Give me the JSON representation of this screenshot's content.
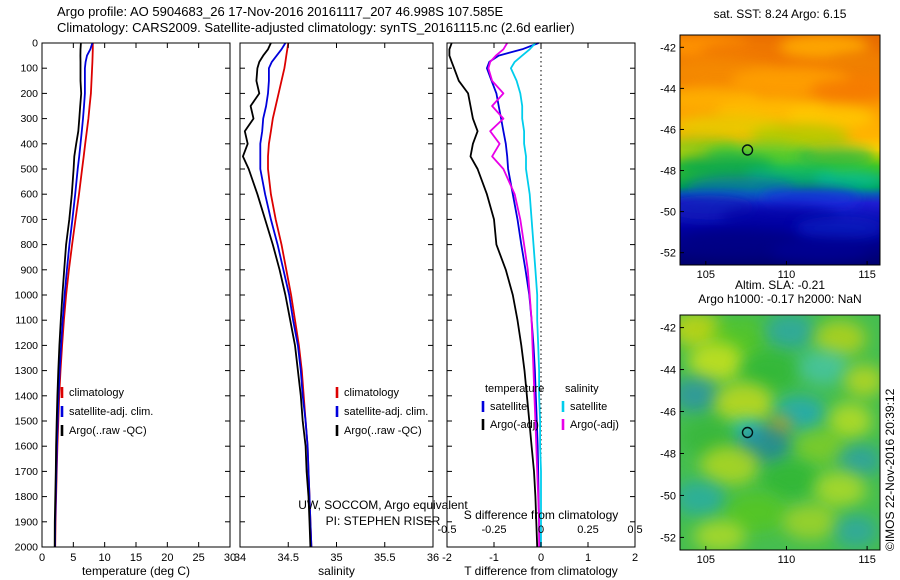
{
  "figure": {
    "title_line1": "Argo profile: AO 5904683_26 17-Nov-2016 20161117_207 46.998S 107.585E",
    "title_line2": "Climatology: CARS2009. Satellite-adjusted climatology: synTS_20161115.nc (2.6d earlier)",
    "annotation_line1": "UW, SOCCOM, Argo equivalent",
    "annotation_line2": "PI: STEPHEN RISER",
    "watermark": "©IMOS 22-Nov-2016 20:39:12"
  },
  "colors": {
    "climatology": "#dc0000",
    "satellite": "#0000dc",
    "argo": "#000000",
    "satellite_salinity": "#00cdec",
    "argo_salinity": "#e800e8",
    "axis": "#000000"
  },
  "chart_data": [
    {
      "id": "temperature-profile",
      "type": "line",
      "xlabel": "temperature (deg C)",
      "xlim": [
        0,
        30
      ],
      "xticks": [
        0,
        5,
        10,
        15,
        20,
        25,
        30
      ],
      "ylim": [
        0,
        2000
      ],
      "ytick_step": 100,
      "depth_m": [
        0,
        25,
        50,
        75,
        100,
        150,
        200,
        250,
        300,
        350,
        400,
        450,
        500,
        600,
        700,
        800,
        900,
        1000,
        1100,
        1200,
        1300,
        1400,
        1500,
        1600,
        1700,
        1800,
        1900,
        2000
      ],
      "legend": [
        {
          "label": "climatology",
          "color": "#dc0000"
        },
        {
          "label": "satellite-adj. clim.",
          "color": "#0000dc"
        },
        {
          "label": "Argo(..raw -QC)",
          "color": "#000000"
        }
      ],
      "series": [
        {
          "name": "climatology",
          "color": "#dc0000",
          "values": [
            8.1,
            8.1,
            8.08,
            8.05,
            8.0,
            7.9,
            7.8,
            7.6,
            7.4,
            7.15,
            6.9,
            6.65,
            6.4,
            5.9,
            5.35,
            4.8,
            4.3,
            3.85,
            3.5,
            3.2,
            2.95,
            2.75,
            2.6,
            2.45,
            2.35,
            2.25,
            2.15,
            2.1
          ]
        },
        {
          "name": "satellite-adj. clim.",
          "color": "#0000dc",
          "values": [
            8.05,
            7.7,
            7.18,
            6.95,
            6.85,
            6.85,
            6.85,
            6.7,
            6.55,
            6.35,
            6.15,
            5.93,
            5.7,
            5.3,
            4.85,
            4.38,
            3.97,
            3.6,
            3.3,
            3.04,
            2.82,
            2.64,
            2.51,
            2.38,
            2.29,
            2.2,
            2.11,
            2.07
          ]
        },
        {
          "name": "Argo(..raw -QC)",
          "color": "#000000",
          "values": [
            6.2,
            6.15,
            6.13,
            6.15,
            6.15,
            6.15,
            6.25,
            6.1,
            5.95,
            5.8,
            5.45,
            5.15,
            5.05,
            4.75,
            4.35,
            3.85,
            3.55,
            3.25,
            3.0,
            2.78,
            2.6,
            2.45,
            2.35,
            2.25,
            2.2,
            2.13,
            2.05,
            2.02
          ]
        }
      ]
    },
    {
      "id": "salinity-profile",
      "type": "line",
      "xlabel": "salinity",
      "xlim": [
        34,
        36
      ],
      "xticks": [
        34,
        34.5,
        35,
        35.5,
        36
      ],
      "ylim": [
        0,
        2000
      ],
      "ytick_step": 100,
      "depth_m": [
        0,
        25,
        50,
        75,
        100,
        150,
        200,
        250,
        300,
        350,
        400,
        450,
        500,
        600,
        700,
        800,
        900,
        1000,
        1100,
        1200,
        1300,
        1400,
        1500,
        1600,
        1700,
        1800,
        1900,
        2000
      ],
      "legend": [
        {
          "label": "climatology",
          "color": "#dc0000"
        },
        {
          "label": "satellite-adj. clim.",
          "color": "#0000dc"
        },
        {
          "label": "Argo(..raw -QC)",
          "color": "#000000"
        }
      ],
      "series": [
        {
          "name": "climatology",
          "color": "#dc0000",
          "values": [
            34.5,
            34.49,
            34.48,
            34.47,
            34.46,
            34.43,
            34.4,
            34.37,
            34.34,
            34.32,
            34.3,
            34.29,
            34.29,
            34.32,
            34.37,
            34.43,
            34.48,
            34.53,
            34.57,
            34.61,
            34.64,
            34.66,
            34.68,
            34.7,
            34.71,
            34.72,
            34.73,
            34.74
          ]
        },
        {
          "name": "satellite-adj. clim.",
          "color": "#0000dc",
          "values": [
            34.47,
            34.43,
            34.38,
            34.33,
            34.3,
            34.3,
            34.29,
            34.27,
            34.24,
            34.23,
            34.21,
            34.21,
            34.21,
            34.26,
            34.32,
            34.39,
            34.45,
            34.51,
            34.55,
            34.6,
            34.63,
            34.65,
            34.68,
            34.7,
            34.71,
            34.72,
            34.73,
            34.74
          ]
        },
        {
          "name": "Argo(..raw -QC)",
          "color": "#000000",
          "values": [
            34.32,
            34.29,
            34.24,
            34.2,
            34.18,
            34.17,
            34.2,
            34.11,
            34.14,
            34.05,
            34.08,
            34.03,
            34.09,
            34.18,
            34.26,
            34.34,
            34.41,
            34.47,
            34.52,
            34.57,
            34.6,
            34.63,
            34.65,
            34.68,
            34.69,
            34.71,
            34.72,
            34.73
          ]
        }
      ]
    },
    {
      "id": "difference-profile",
      "type": "line",
      "xlabel": "T difference from climatology",
      "x2label": "S difference from climatology",
      "xlim": [
        -2,
        2
      ],
      "xticks": [
        -2,
        -1,
        0,
        1,
        2
      ],
      "x2ticks": [
        -0.5,
        -0.25,
        0,
        0.25,
        0.5
      ],
      "x2_scale": 4,
      "zero_line": true,
      "ylim": [
        0,
        2000
      ],
      "ytick_step": 100,
      "depth_m": [
        0,
        25,
        50,
        75,
        100,
        150,
        200,
        250,
        300,
        350,
        400,
        450,
        500,
        600,
        700,
        800,
        900,
        1000,
        1100,
        1200,
        1300,
        1400,
        1500,
        1600,
        1700,
        1800,
        1900,
        2000
      ],
      "legend_groups": [
        {
          "header": "temperature",
          "items": [
            {
              "label": "satellite",
              "color": "#0000dc"
            },
            {
              "label": "Argo(-adj)",
              "color": "#000000"
            }
          ]
        },
        {
          "header": "salinity",
          "items": [
            {
              "label": "satellite",
              "color": "#00cdec"
            },
            {
              "label": "Argo(-adj)",
              "color": "#e800e8"
            }
          ]
        }
      ],
      "series": [
        {
          "name": "temperature satellite",
          "color": "#0000dc",
          "values": [
            -0.05,
            -0.4,
            -0.9,
            -1.1,
            -1.15,
            -1.05,
            -0.95,
            -0.9,
            -0.85,
            -0.8,
            -0.75,
            -0.72,
            -0.7,
            -0.6,
            -0.5,
            -0.42,
            -0.33,
            -0.25,
            -0.2,
            -0.16,
            -0.13,
            -0.11,
            -0.09,
            -0.07,
            -0.06,
            -0.05,
            -0.04,
            -0.03
          ]
        },
        {
          "name": "temperature Argo(-adj)",
          "color": "#000000",
          "values": [
            -1.9,
            -1.95,
            -1.95,
            -1.9,
            -1.85,
            -1.75,
            -1.55,
            -1.5,
            -1.45,
            -1.35,
            -1.45,
            -1.5,
            -1.35,
            -1.15,
            -1.0,
            -0.95,
            -0.75,
            -0.6,
            -0.5,
            -0.42,
            -0.35,
            -0.3,
            -0.25,
            -0.2,
            -0.15,
            -0.12,
            -0.1,
            -0.08
          ]
        },
        {
          "name": "salinity satellite",
          "color": "#00cdec",
          "scale": 4,
          "values": [
            -0.03,
            -0.06,
            -0.1,
            -0.14,
            -0.16,
            -0.13,
            -0.11,
            -0.1,
            -0.1,
            -0.09,
            -0.09,
            -0.08,
            -0.08,
            -0.06,
            -0.05,
            -0.04,
            -0.03,
            -0.02,
            -0.02,
            -0.015,
            -0.01,
            -0.01,
            -0.005,
            -0.005,
            0,
            0,
            0,
            0
          ]
        },
        {
          "name": "salinity Argo(-adj)",
          "color": "#e800e8",
          "scale": 4,
          "values": [
            -0.18,
            -0.2,
            -0.24,
            -0.27,
            -0.28,
            -0.26,
            -0.2,
            -0.26,
            -0.2,
            -0.27,
            -0.22,
            -0.26,
            -0.2,
            -0.14,
            -0.11,
            -0.09,
            -0.07,
            -0.06,
            -0.05,
            -0.045,
            -0.04,
            -0.035,
            -0.03,
            -0.025,
            -0.02,
            -0.015,
            -0.01,
            -0.01
          ]
        }
      ]
    },
    {
      "id": "sst-map",
      "type": "heatmap",
      "title": "sat. SST: 8.24 Argo: 6.15",
      "sat_sst": 8.24,
      "argo_sst": 6.15,
      "xlim": [
        103.4,
        115.8
      ],
      "ylim": [
        -52.6,
        -41.4
      ],
      "xticks": [
        105,
        110,
        115
      ],
      "yticks": [
        -42,
        -44,
        -46,
        -48,
        -50,
        -52
      ],
      "marker": {
        "lon": 107.585,
        "lat": -46.998
      }
    },
    {
      "id": "sla-map",
      "type": "heatmap",
      "title_line1": "Altim. SLA: -0.21",
      "title_line2": "Argo h1000: -0.17 h2000: NaN",
      "altim_sla": -0.21,
      "argo_h1000": -0.17,
      "argo_h2000": "NaN",
      "xlim": [
        103.4,
        115.8
      ],
      "ylim": [
        -52.6,
        -41.4
      ],
      "xticks": [
        105,
        110,
        115
      ],
      "yticks": [
        -42,
        -44,
        -46,
        -48,
        -50,
        -52
      ],
      "marker": {
        "lon": 107.585,
        "lat": -46.998
      }
    }
  ]
}
